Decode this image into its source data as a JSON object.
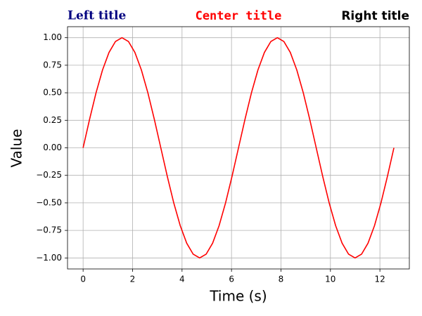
{
  "chart_data": {
    "type": "line",
    "title": "Center title",
    "title_left": "Left title",
    "title_right": "Right title",
    "x_label": "Time (s)",
    "y_label": "Value",
    "x": [
      0,
      0.2618,
      0.5236,
      0.7854,
      1.0472,
      1.309,
      1.5708,
      1.8326,
      2.0944,
      2.3562,
      2.618,
      2.8798,
      3.1416,
      3.4034,
      3.6652,
      3.927,
      4.1888,
      4.4506,
      4.7124,
      4.9742,
      5.236,
      5.4978,
      5.7596,
      6.0214,
      6.2832,
      6.545,
      6.8068,
      7.0686,
      7.3304,
      7.5922,
      7.854,
      8.1158,
      8.3776,
      8.6394,
      8.9012,
      9.163,
      9.4248,
      9.6866,
      9.9484,
      10.2102,
      10.472,
      10.7338,
      10.9956,
      11.2574,
      11.5192,
      11.781,
      12.0428,
      12.3046,
      12.5664
    ],
    "series": [
      {
        "color": "#ff0000",
        "values": [
          0,
          0.2588,
          0.5,
          0.7071,
          0.866,
          0.9659,
          1,
          0.9659,
          0.866,
          0.7071,
          0.5,
          0.2588,
          0,
          -0.2588,
          -0.5,
          -0.7071,
          -0.866,
          -0.9659,
          -1,
          -0.9659,
          -0.866,
          -0.7071,
          -0.5,
          -0.2588,
          0,
          0.2588,
          0.5,
          0.7071,
          0.866,
          0.9659,
          1,
          0.9659,
          0.866,
          0.7071,
          0.5,
          0.2588,
          0,
          -0.2588,
          -0.5,
          -0.7071,
          -0.866,
          -0.9659,
          -1,
          -0.9659,
          -0.866,
          -0.7071,
          -0.5,
          -0.2588,
          0
        ]
      }
    ],
    "xlim": [
      -0.63,
      13.19
    ],
    "ylim": [
      -1.1,
      1.1
    ],
    "xticks": [
      0,
      2,
      4,
      6,
      8,
      10,
      12
    ],
    "yticks": [
      {
        "value": -1,
        "label": "−1.00"
      },
      {
        "value": -0.75,
        "label": "−0.75"
      },
      {
        "value": -0.5,
        "label": "−0.50"
      },
      {
        "value": -0.25,
        "label": "−0.25"
      },
      {
        "value": 0,
        "label": "0.00"
      },
      0.25,
      {
        "value": 0.5,
        "label": "0.50"
      },
      0.75,
      {
        "value": 1,
        "label": "1.00"
      }
    ],
    "grid": true
  }
}
